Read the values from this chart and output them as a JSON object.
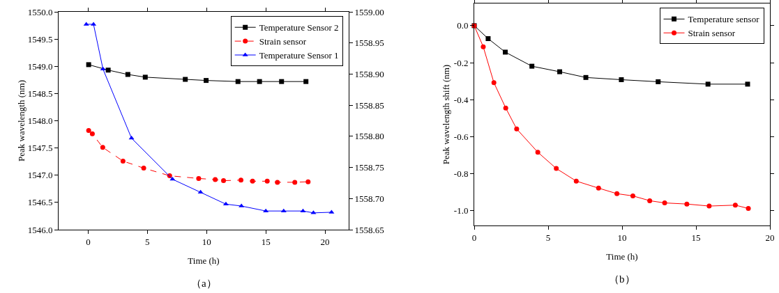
{
  "chart_data": [
    {
      "type": "line",
      "xlabel": "Time (h)",
      "ylabel": "Peak wavelength (nm)",
      "xlim": [
        -2.5,
        22
      ],
      "xticks": [
        0,
        5,
        10,
        15,
        20
      ],
      "ylim": [
        1546,
        1550
      ],
      "yticks": [
        {
          "value": 1546,
          "label": "1546.0"
        },
        {
          "value": 1546.5,
          "label": "1546.5"
        },
        {
          "value": 1547,
          "label": "1547.0"
        },
        {
          "value": 1547.5,
          "label": "1547.5"
        },
        {
          "value": 1548,
          "label": "1548.0"
        },
        {
          "value": 1548.5,
          "label": "1548.5"
        },
        {
          "value": 1549,
          "label": "1549.0"
        },
        {
          "value": 1549.5,
          "label": "1549.5"
        },
        {
          "value": 1550,
          "label": "1550.0"
        }
      ],
      "y2lim": [
        1558.65,
        1559
      ],
      "y2ticks": [
        {
          "value": 1558.65,
          "label": "1558.65"
        },
        {
          "value": 1558.7,
          "label": "1558.70"
        },
        {
          "value": 1558.75,
          "label": "1558.75"
        },
        {
          "value": 1558.8,
          "label": "1558.80"
        },
        {
          "value": 1558.85,
          "label": "1558.85"
        },
        {
          "value": 1558.9,
          "label": "1558.90"
        },
        {
          "value": 1558.95,
          "label": "1558.95"
        },
        {
          "value": 1559,
          "label": "1559.00"
        }
      ],
      "grid": false,
      "legend": "top right",
      "annotations": [
        "（a）"
      ],
      "series": [
        {
          "name": "Temperature Sensor 2",
          "color": "#000000",
          "marker": "square",
          "line_style": "solid",
          "x": [
            0.04,
            1.69,
            3.35,
            4.82,
            8.2,
            9.96,
            12.65,
            14.47,
            16.33,
            18.39
          ],
          "values": [
            1549.03,
            1548.93,
            1548.85,
            1548.8,
            1548.76,
            1548.74,
            1548.72,
            1548.72,
            1548.72,
            1548.72
          ]
        },
        {
          "name": "Strain sensor",
          "color": "#ff0000",
          "marker": "circle",
          "line_style": "dashed",
          "x": [
            0.04,
            0.35,
            1.23,
            2.94,
            4.69,
            6.88,
            9.33,
            10.73,
            11.43,
            12.9,
            13.88,
            15.12,
            15.98,
            17.45,
            18.57
          ],
          "values": [
            1547.82,
            1547.76,
            1547.51,
            1547.26,
            1547.13,
            1546.99,
            1546.94,
            1546.92,
            1546.9,
            1546.91,
            1546.89,
            1546.89,
            1546.87,
            1546.87,
            1546.88
          ]
        },
        {
          "name": "Temperature Sensor 1",
          "color": "#0000ff",
          "marker": "triangle",
          "line_style": "solid",
          "axis": "y2",
          "x": [
            -0.16,
            0.45,
            1.25,
            3.66,
            7.12,
            9.49,
            11.63,
            12.94,
            15.0,
            16.51,
            18.14,
            19.02,
            20.55
          ],
          "values": [
            1558.98,
            1558.98,
            1558.908,
            1558.797,
            1558.731,
            1558.71,
            1558.691,
            1558.688,
            1558.68,
            1558.68,
            1558.68,
            1558.677,
            1558.678
          ]
        }
      ]
    },
    {
      "type": "line",
      "xlabel": "Time (h)",
      "ylabel": "Peak wavelength shift (nm)",
      "xlim": [
        0,
        20
      ],
      "xticks": [
        0,
        5,
        10,
        15,
        20
      ],
      "ylim": [
        -1.08,
        0.12
      ],
      "yticks": [
        {
          "value": -1,
          "label": "-1.0"
        },
        {
          "value": -0.8,
          "label": "-0.8"
        },
        {
          "value": -0.6,
          "label": "-0.6"
        },
        {
          "value": -0.4,
          "label": "-0.4"
        },
        {
          "value": -0.2,
          "label": "-0.2"
        },
        {
          "value": 0,
          "label": "0.0"
        }
      ],
      "grid": false,
      "legend": "top right",
      "annotations": [
        "（b）"
      ],
      "series": [
        {
          "name": "Temperature sensor",
          "color": "#000000",
          "marker": "square",
          "line_style": "solid",
          "x": [
            0,
            0.94,
            2.1,
            3.9,
            5.78,
            7.55,
            9.95,
            12.44,
            15.81,
            18.49
          ],
          "values": [
            0,
            -0.07,
            -0.143,
            -0.219,
            -0.249,
            -0.28,
            -0.292,
            -0.303,
            -0.316,
            -0.316
          ]
        },
        {
          "name": "Strain sensor",
          "color": "#ff0000",
          "marker": "circle",
          "line_style": "solid",
          "x": [
            0,
            0.61,
            1.33,
            2.13,
            2.87,
            4.3,
            5.55,
            6.9,
            8.41,
            9.65,
            10.73,
            11.87,
            12.88,
            14.38,
            15.89,
            17.66,
            18.54
          ],
          "values": [
            0,
            -0.114,
            -0.308,
            -0.445,
            -0.558,
            -0.684,
            -0.772,
            -0.84,
            -0.878,
            -0.908,
            -0.92,
            -0.946,
            -0.958,
            -0.964,
            -0.975,
            -0.97,
            -0.988
          ]
        }
      ]
    }
  ]
}
